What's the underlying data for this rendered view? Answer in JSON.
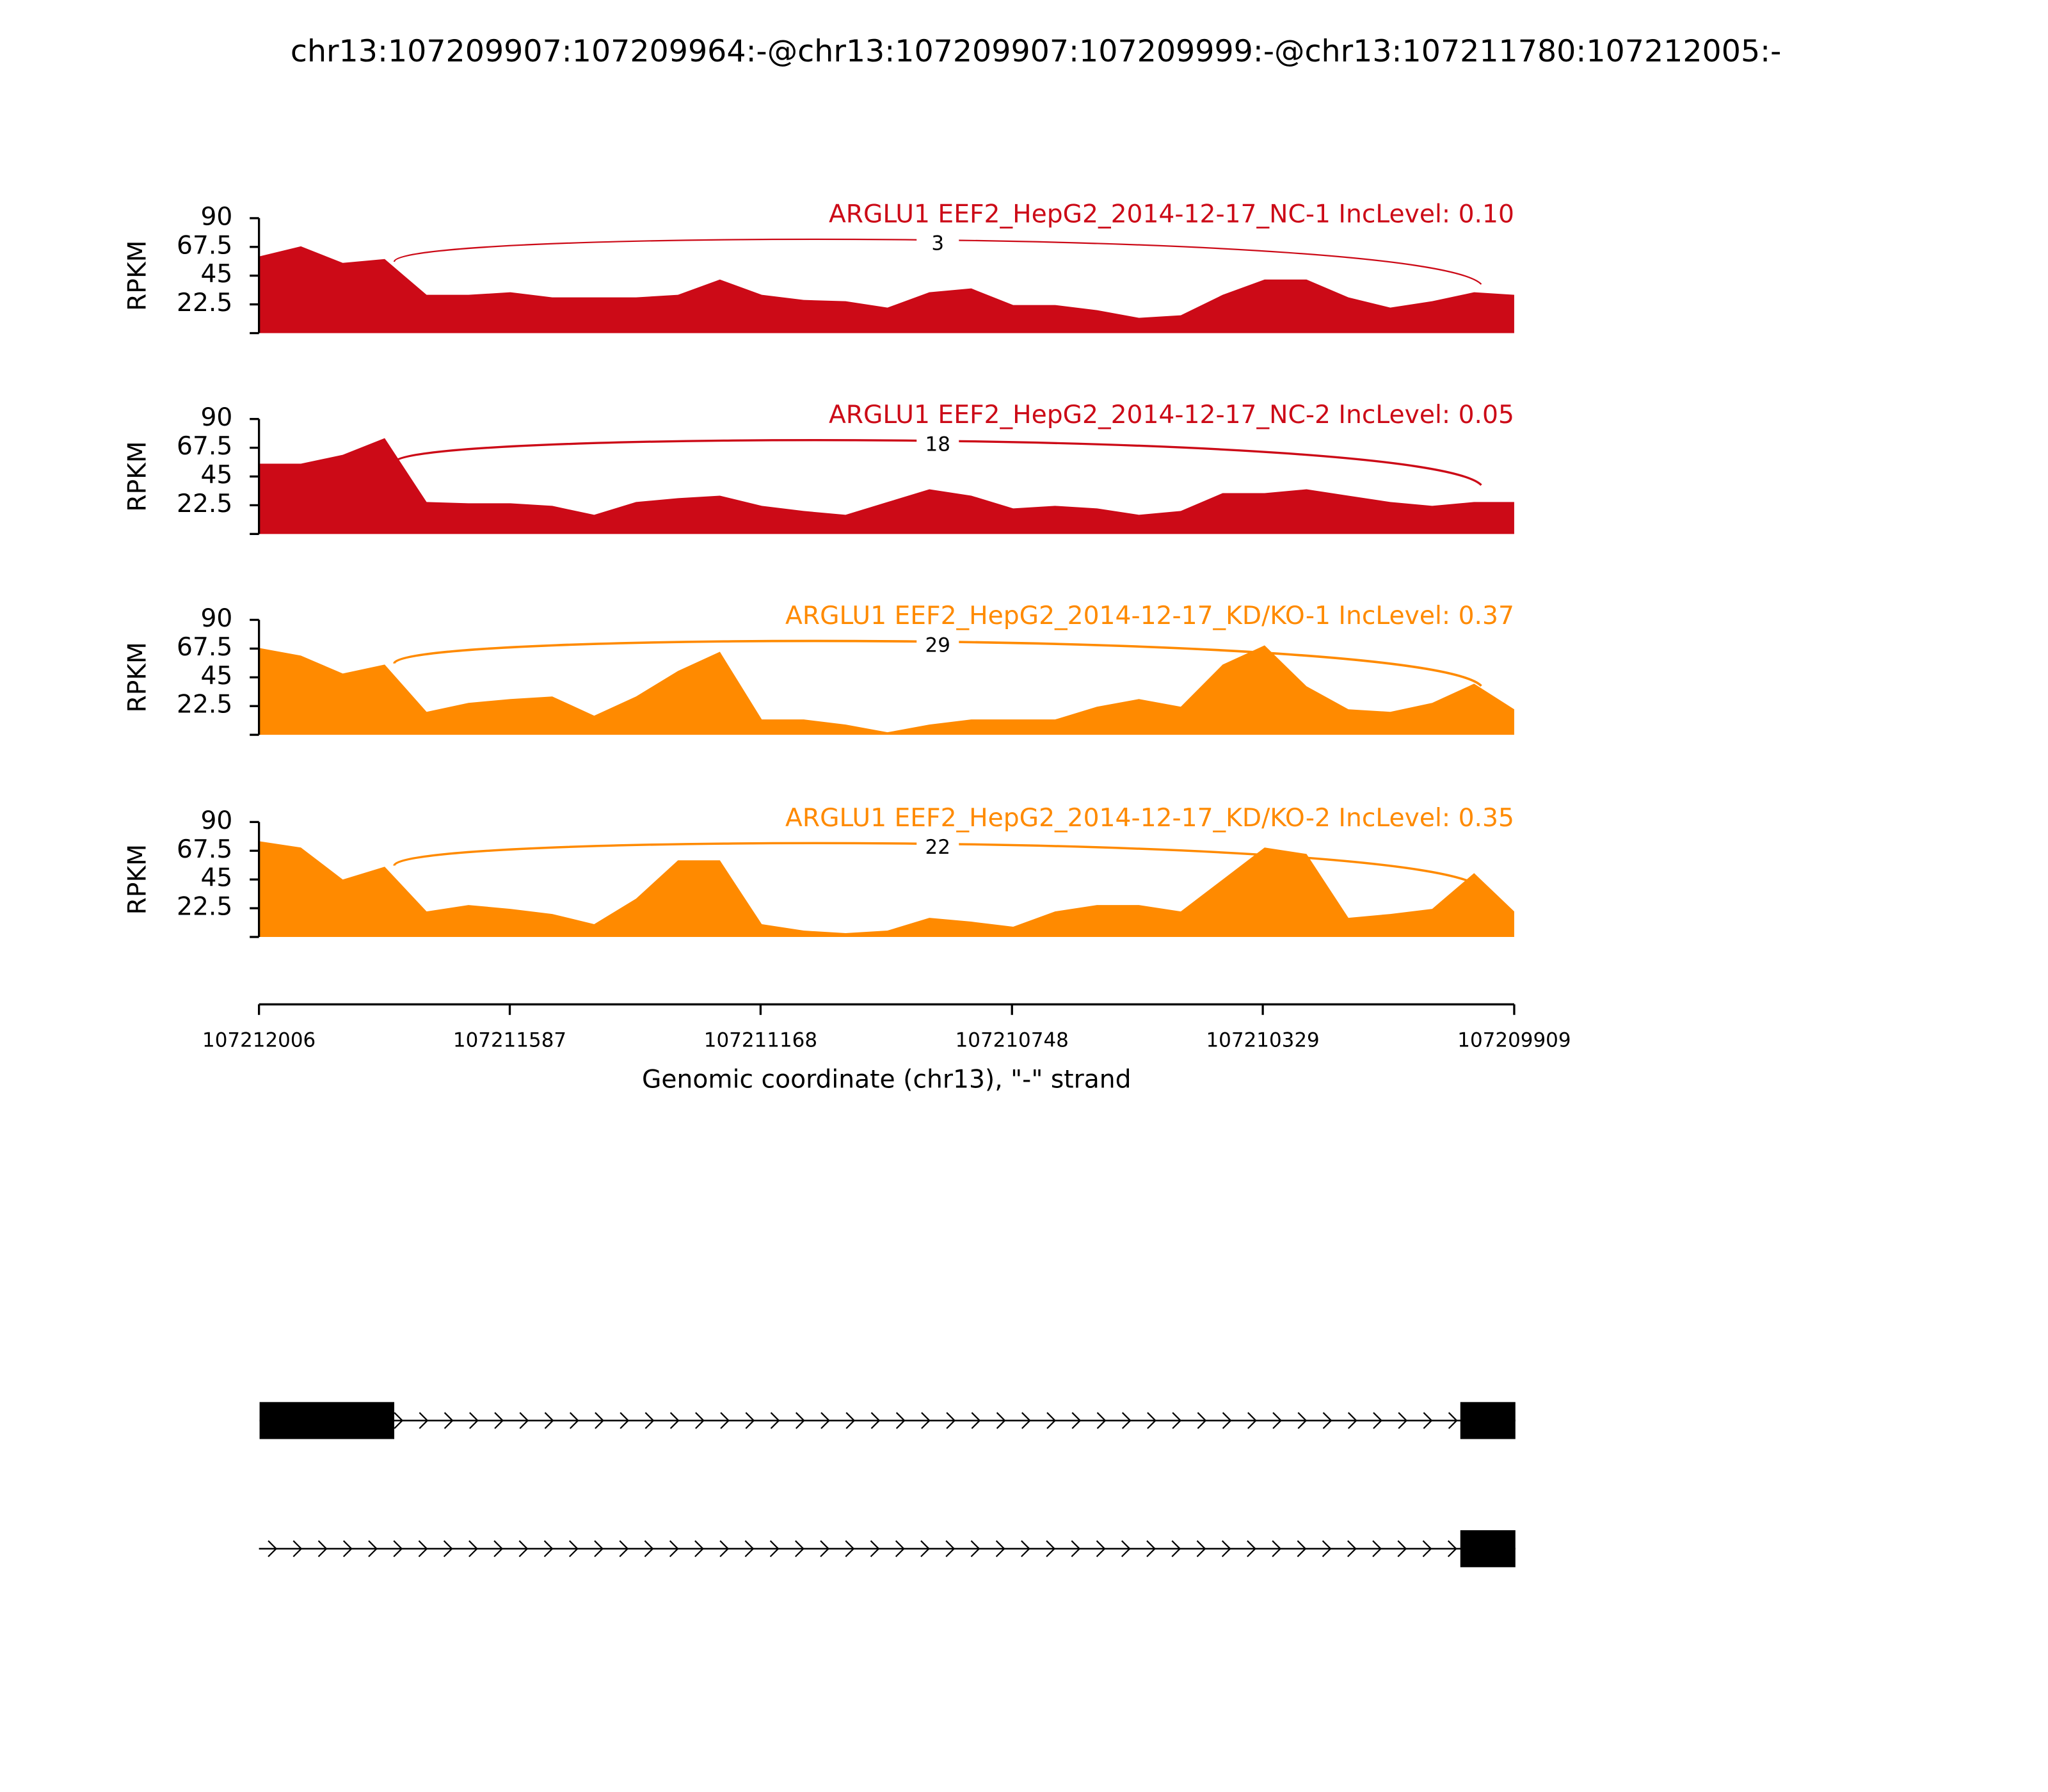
{
  "title": "chr13:107209907:107209964:-@chr13:107209907:107209999:-@chr13:107211780:107212005:-",
  "chart_data": [
    {
      "type": "area",
      "title": "ARGLU1 EEF2_HepG2_2014-12-17_NC-1 IncLevel: 0.10",
      "ylabel": "RPKM",
      "color": "#cc0a17",
      "xlim": [
        107212006,
        107209909
      ],
      "ylim": [
        0,
        90
      ],
      "yticks": [
        22.5,
        45,
        67.5,
        90
      ],
      "x": [
        107212006,
        107211936,
        107211866,
        107211796,
        107211726,
        107211656,
        107211586,
        107211516,
        107211446,
        107211376,
        107211306,
        107211236,
        107211166,
        107211096,
        107211026,
        107210956,
        107210886,
        107210816,
        107210746,
        107210676,
        107210606,
        107210536,
        107210466,
        107210396,
        107210326,
        107210256,
        107210186,
        107210116,
        107210046,
        107209976,
        107209909
      ],
      "values": [
        60,
        68,
        55,
        58,
        30,
        30,
        32,
        28,
        28,
        28,
        30,
        42,
        30,
        26,
        25,
        20,
        32,
        35,
        22,
        22,
        18,
        12,
        14,
        30,
        42,
        42,
        28,
        20,
        25,
        32,
        30
      ],
      "junction": {
        "start": 107211780,
        "end": 107209964,
        "count": 3
      }
    },
    {
      "type": "area",
      "title": "ARGLU1 EEF2_HepG2_2014-12-17_NC-2 IncLevel: 0.05",
      "ylabel": "RPKM",
      "color": "#cc0a17",
      "xlim": [
        107212006,
        107209909
      ],
      "ylim": [
        0,
        90
      ],
      "yticks": [
        22.5,
        45,
        67.5,
        90
      ],
      "x": [
        107212006,
        107211936,
        107211866,
        107211796,
        107211726,
        107211656,
        107211586,
        107211516,
        107211446,
        107211376,
        107211306,
        107211236,
        107211166,
        107211096,
        107211026,
        107210956,
        107210886,
        107210816,
        107210746,
        107210676,
        107210606,
        107210536,
        107210466,
        107210396,
        107210326,
        107210256,
        107210186,
        107210116,
        107210046,
        107209976,
        107209909
      ],
      "values": [
        55,
        55,
        62,
        75,
        25,
        24,
        24,
        22,
        15,
        25,
        28,
        30,
        22,
        18,
        15,
        25,
        35,
        30,
        20,
        22,
        20,
        15,
        18,
        32,
        32,
        35,
        30,
        25,
        22,
        25,
        25
      ],
      "junction": {
        "start": 107211780,
        "end": 107209964,
        "count": 18
      }
    },
    {
      "type": "area",
      "title": "ARGLU1 EEF2_HepG2_2014-12-17_KD/KO-1 IncLevel: 0.37",
      "ylabel": "RPKM",
      "color": "#ff8a00",
      "xlim": [
        107212006,
        107209909
      ],
      "ylim": [
        0,
        90
      ],
      "yticks": [
        22.5,
        45,
        67.5,
        90
      ],
      "x": [
        107212006,
        107211936,
        107211866,
        107211796,
        107211726,
        107211656,
        107211586,
        107211516,
        107211446,
        107211376,
        107211306,
        107211236,
        107211166,
        107211096,
        107211026,
        107210956,
        107210886,
        107210816,
        107210746,
        107210676,
        107210606,
        107210536,
        107210466,
        107210396,
        107210326,
        107210256,
        107210186,
        107210116,
        107210046,
        107209976,
        107209909
      ],
      "values": [
        68,
        62,
        48,
        55,
        18,
        25,
        28,
        30,
        15,
        30,
        50,
        65,
        12,
        12,
        8,
        2,
        8,
        12,
        12,
        12,
        22,
        28,
        22,
        55,
        70,
        38,
        20,
        18,
        25,
        40,
        20
      ],
      "junction": {
        "start": 107211780,
        "end": 107209964,
        "count": 29
      }
    },
    {
      "type": "area",
      "title": "ARGLU1 EEF2_HepG2_2014-12-17_KD/KO-2 IncLevel: 0.35",
      "ylabel": "RPKM",
      "color": "#ff8a00",
      "xlim": [
        107212006,
        107209909
      ],
      "ylim": [
        0,
        90
      ],
      "yticks": [
        22.5,
        45,
        67.5,
        90
      ],
      "x": [
        107212006,
        107211936,
        107211866,
        107211796,
        107211726,
        107211656,
        107211586,
        107211516,
        107211446,
        107211376,
        107211306,
        107211236,
        107211166,
        107211096,
        107211026,
        107210956,
        107210886,
        107210816,
        107210746,
        107210676,
        107210606,
        107210536,
        107210466,
        107210396,
        107210326,
        107210256,
        107210186,
        107210116,
        107210046,
        107209976,
        107209909
      ],
      "values": [
        75,
        70,
        45,
        55,
        20,
        25,
        22,
        18,
        10,
        30,
        60,
        60,
        10,
        5,
        3,
        5,
        15,
        12,
        8,
        20,
        25,
        25,
        20,
        45,
        70,
        65,
        15,
        18,
        22,
        50,
        20
      ],
      "junction": {
        "start": 107211780,
        "end": 107209964,
        "count": 22
      },
      "xticks": [
        107212006,
        107211587,
        107211168,
        107210748,
        107210329,
        107209909
      ],
      "xlabel": "Genomic coordinate (chr13), \"-\" strand"
    }
  ],
  "gene_model": {
    "transcripts": [
      {
        "start": 107212005,
        "end": 107209907,
        "exons": [
          [
            107212005,
            107211780
          ],
          [
            107209999,
            107209907
          ]
        ]
      },
      {
        "start": 107212006,
        "end": 107209907,
        "exons": [
          [
            107209999,
            107209907
          ]
        ]
      }
    ]
  }
}
